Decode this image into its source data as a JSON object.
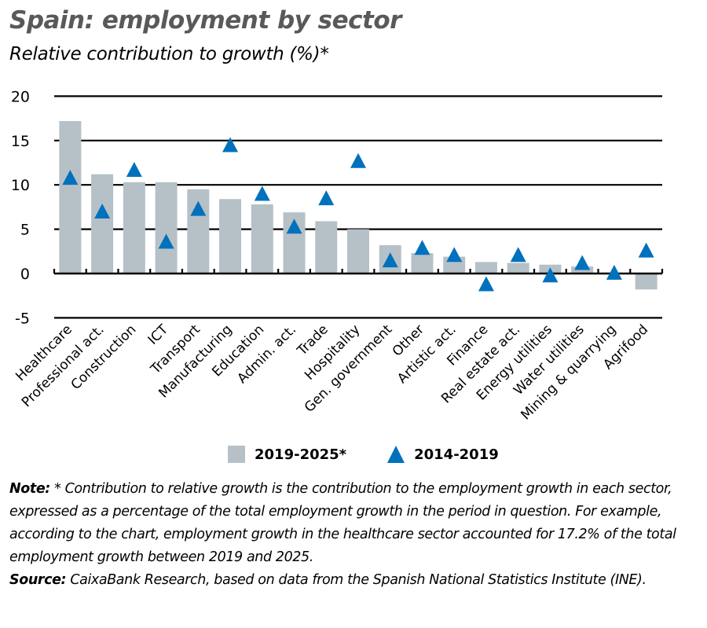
{
  "header": {
    "title": "Spain: employment by sector",
    "subtitle": "Relative contribution to growth (%)*"
  },
  "legend": {
    "series_a": "2019-2025*",
    "series_b": "2014-2019"
  },
  "note": {
    "note_label": "Note:",
    "note_text": " * Contribution to relative growth is the contribution to the employment growth in each sector, expressed as a percentage of the total employment growth in the period in question. For example, according to the chart, employment growth in the healthcare sector accounted for 17.2% of the total employment growth between 2019 and 2025.",
    "source_label": "Source:",
    "source_text": " CaixaBank Research, based on data from the Spanish National Statistics Institute (INE)."
  },
  "colors": {
    "bar": "#b6c1c7",
    "triangle": "#0071bc",
    "title": "#58595b",
    "grid": "#000000"
  },
  "chart_data": {
    "type": "bar",
    "title": "Spain: employment by sector",
    "subtitle": "Relative contribution to growth (%)*",
    "xlabel": "",
    "ylabel": "",
    "ylim": [
      -5,
      20
    ],
    "yticks": [
      20,
      15,
      10,
      5,
      0,
      -5
    ],
    "grid": true,
    "legend_position": "bottom",
    "categories": [
      "Healthcare",
      "Professional act.",
      "Construction",
      "ICT",
      "Transport",
      "Manufacturing",
      "Education",
      "Admin. act.",
      "Trade",
      "Hospitality",
      "Gen. government",
      "Other",
      "Artistic act.",
      "Finance",
      "Real estate act.",
      "Energy utilities",
      "Water utilities",
      "Mining & quarrying",
      "Agrifood"
    ],
    "series": [
      {
        "name": "2019-2025*",
        "type": "bar",
        "color": "#b6c1c7",
        "values": [
          17.2,
          11.2,
          10.3,
          10.3,
          9.5,
          8.4,
          7.8,
          6.9,
          5.9,
          5.0,
          3.2,
          2.3,
          1.9,
          1.3,
          1.2,
          1.0,
          0.8,
          0.0,
          -1.8
        ]
      },
      {
        "name": "2014-2019",
        "type": "scatter",
        "marker": "triangle",
        "color": "#0071bc",
        "values": [
          10.8,
          7.0,
          11.7,
          3.6,
          7.3,
          14.5,
          9.0,
          5.3,
          8.5,
          12.7,
          1.5,
          2.9,
          2.1,
          -1.2,
          2.1,
          -0.2,
          1.2,
          0.1,
          2.6
        ]
      }
    ]
  }
}
